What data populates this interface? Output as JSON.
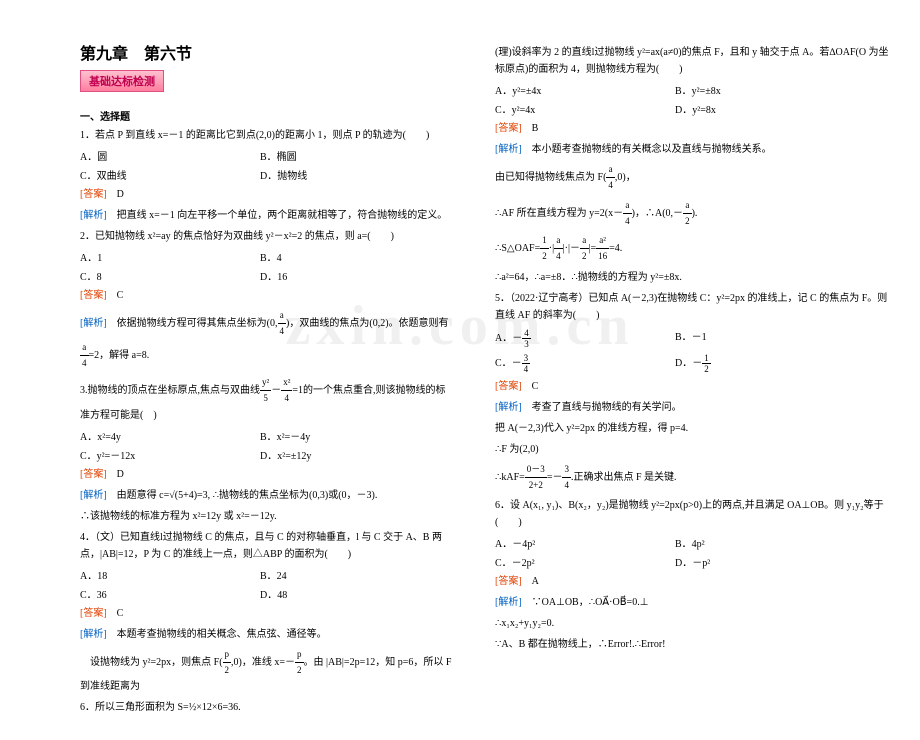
{
  "watermark": "zxin.com.cn",
  "chapter_title": "第九章　第六节",
  "badge": "基础达标检测",
  "section1": "一、选择题",
  "q1": {
    "text": "1．若点 P 到直线 x=－1 的距离比它到点(2,0)的距离小 1，则点 P 的轨迹为(　　)",
    "optA": "A．圆",
    "optB": "B．椭圆",
    "optC": "C．双曲线",
    "optD": "D．抛物线",
    "answer": "D",
    "analysis": "把直线 x=－1 向左平移一个单位，两个距离就相等了，符合抛物线的定义。"
  },
  "q2": {
    "text": "2．已知抛物线 x²=ay 的焦点恰好为双曲线 y²－x²=2 的焦点，则 a=(　　)",
    "optA": "A．1",
    "optB": "B．4",
    "optC": "C．8",
    "optD": "D．16",
    "answer": "C",
    "analysis_prefix": "依据抛物线方程可得其焦点坐标为",
    "analysis_frac_num": "a",
    "analysis_frac_den": "4",
    "analysis_mid": "，双曲线的焦点为(0,2)。依题意则有",
    "analysis_mid2": "=2，解得 a=8."
  },
  "q3": {
    "text_prefix": "3.抛物线的顶点在坐标原点,焦点与双曲线",
    "frac1_num": "y²",
    "frac1_den": "5",
    "frac2_num": "x²",
    "frac2_den": "4",
    "text_suffix": "=1的一个焦点重合,则该抛物线的标准方程可能是(　)",
    "optA": "A．x²=4y",
    "optB": "B．x²=－4y",
    "optC": "C．y²=－12x",
    "optD": "D．x²=±12y",
    "answer": "D",
    "analysis_a": "由题意得 c=√(5+4)=3, ∴抛物线的焦点坐标为(0,3)或(0，－3).",
    "analysis_b": "∴该抛物线的标准方程为 x²=12y 或 x²=－12y."
  },
  "q4": {
    "text": "4．（文）已知直线l过抛物线 C 的焦点，且与 C 的对称轴垂直，l 与 C 交于 A、B 两点，|AB|=12，P 为 C 的准线上一点，则△ABP 的面积为(　　)",
    "optA": "A．18",
    "optB": "B．24",
    "optC": "C．36",
    "optD": "D．48",
    "answer": "C",
    "analysis_a": "本题考查抛物线的相关概念、焦点弦、通径等。",
    "analysis_b_prefix": "设抛物线为 y²=2px，则焦点 F",
    "analysis_b_mid": "，准线 x=－",
    "analysis_b_suffix": "。由 |AB|=2p=12，知 p=6，所以 F 到准线距离为",
    "analysis_c": "6．所以三角形面积为 S=½×12×6=36."
  },
  "q4r": {
    "text": "(理)设斜率为 2 的直线l过抛物线 y²=ax(a≠0)的焦点 F，且和 y 轴交于点 A。若∆OAF(O 为坐标原点)的面积为 4，则抛物线方程为(　　)",
    "optA": "A．y²=±4x",
    "optB": "B．y²=±8x",
    "optC": "C．y²=4x",
    "optD": "D．y²=8x",
    "answer": "B",
    "analysis_a": "本小题考查抛物线的有关概念以及直线与抛物线关系。",
    "analysis_b_prefix": "由已知得抛物线焦点为 F",
    "analysis_b_suffix": "，",
    "analysis_c_prefix": "∴AF 所在直线方程为 y=2",
    "analysis_c_mid": "，∴A",
    "analysis_d_prefix": "∴S△OAF=",
    "analysis_d_mid": "·",
    "analysis_d_mid2": "·",
    "analysis_d_suffix": "=4.",
    "analysis_e": "∴a²=64，∴a=±8．∴抛物线的方程为 y²=±8x."
  },
  "q5": {
    "text": "5．（2022·辽宁高考）已知点 A(－2,3)在抛物线 C：y²=2px 的准线上，记 C 的焦点为 F。则直线 AF 的斜率为(　　)",
    "optA_prefix": "A．－",
    "optA_num": "4",
    "optA_den": "3",
    "optB": "B．－1",
    "optC_prefix": "C．－",
    "optC_num": "3",
    "optC_den": "4",
    "optD_prefix": "D．－",
    "optD_num": "1",
    "optD_den": "2",
    "answer": "C",
    "analysis_a": "考查了直线与抛物线的有关学问。",
    "analysis_b": "把 A(－2,3)代入 y²=2px 的准线方程，得 p=4.",
    "analysis_c": "∴F 为(2,0)",
    "analysis_d_prefix": "∴kAF=",
    "analysis_d_num": "0－3",
    "analysis_d_den": "2+2",
    "analysis_d_mid": "=－",
    "analysis_d_num2": "3",
    "analysis_d_den2": "4",
    "analysis_d_suffix": ".正确求出焦点 F 是关键."
  },
  "q6": {
    "text": "6．设 A(x₁, y₁)、B(x₂，y₂)是抛物线 y²=2px(p>0)上的两点,并且满足 OA⊥OB。则 y₁y₂等于(　　)",
    "optA": "A．－4p²",
    "optB": "B．4p²",
    "optC": "C．－2p²",
    "optD": "D．－p²",
    "answer": "A",
    "analysis_a": "∵OA⊥OB，∴OA⃗·OB⃗=0.⊥",
    "analysis_b": "∴x₁x₂+y₁y₂=0.",
    "analysis_c": "∵A、B 都在抛物线上，∴Error!.∴Error!"
  },
  "labels": {
    "answer": "[答案]",
    "analysis": "[解析]"
  }
}
